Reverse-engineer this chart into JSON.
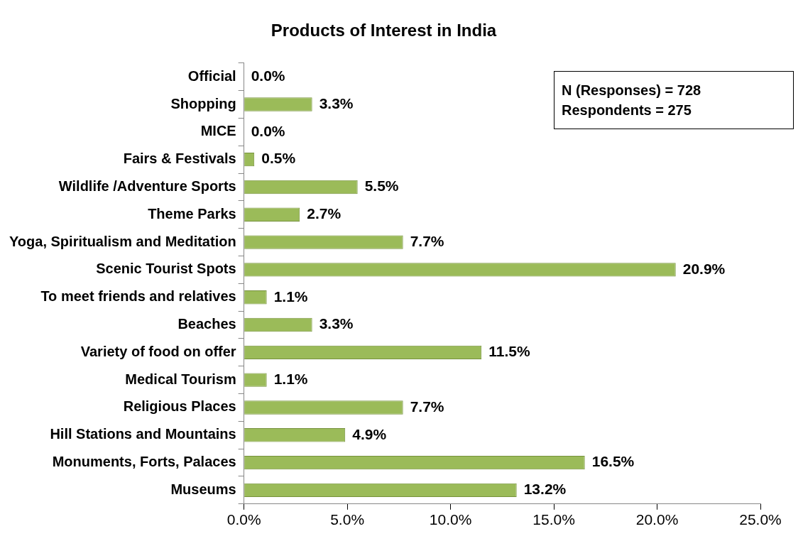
{
  "chart_data": {
    "type": "bar",
    "orientation": "horizontal",
    "title": "Products of Interest in India",
    "categories": [
      "Official",
      "Shopping",
      "MICE",
      "Fairs & Festivals",
      "Wildlife /Adventure Sports",
      "Theme Parks",
      "Yoga, Spiritualism and Meditation",
      "Scenic Tourist Spots",
      "To meet friends and relatives",
      "Beaches",
      "Variety of food on offer",
      "Medical Tourism",
      "Religious Places",
      "Hill Stations and Mountains",
      "Monuments, Forts, Palaces",
      "Museums"
    ],
    "values": [
      0.0,
      3.3,
      0.0,
      0.5,
      5.5,
      2.7,
      7.7,
      20.9,
      1.1,
      3.3,
      11.5,
      1.1,
      7.7,
      4.9,
      16.5,
      13.2
    ],
    "value_labels": [
      "0.0%",
      "3.3%",
      "0.0%",
      "0.5%",
      "5.5%",
      "2.7%",
      "7.7%",
      "20.9%",
      "1.1%",
      "3.3%",
      "11.5%",
      "1.1%",
      "7.7%",
      "4.9%",
      "16.5%",
      "13.2%"
    ],
    "color": "#9bbb59",
    "xlim": [
      0,
      25
    ],
    "xticks": [
      {
        "value": 0,
        "label": "0.0%"
      },
      {
        "value": 5,
        "label": "5.0%"
      },
      {
        "value": 10,
        "label": "10.0%"
      },
      {
        "value": 15,
        "label": "15.0%"
      },
      {
        "value": 20,
        "label": "20.0%"
      },
      {
        "value": 25,
        "label": "25.0%"
      }
    ],
    "annotations": [
      "N (Responses) = 728",
      "Respondents = 275"
    ],
    "grid": false,
    "legend": false
  }
}
